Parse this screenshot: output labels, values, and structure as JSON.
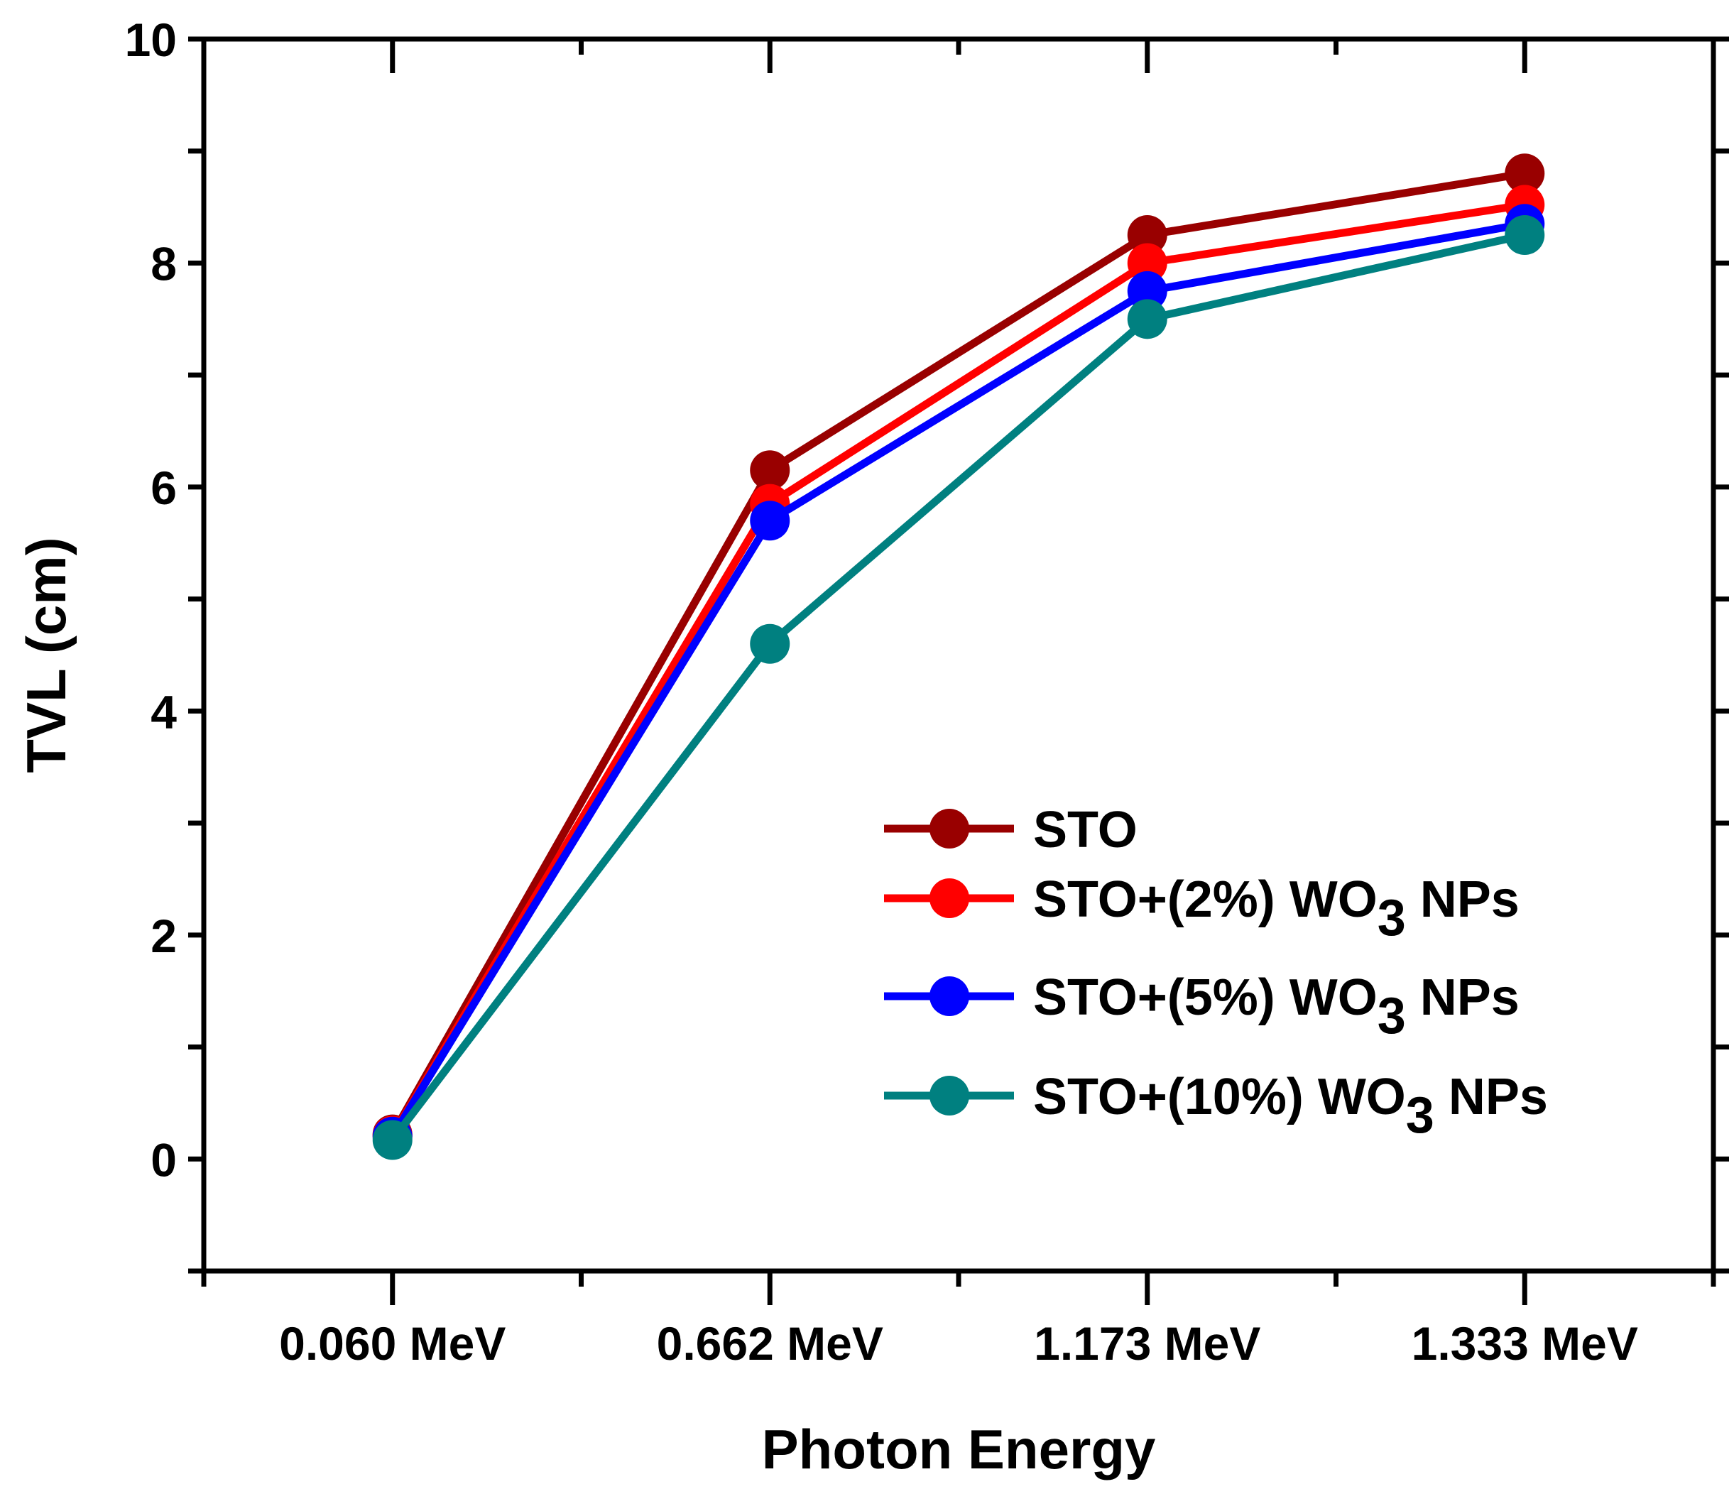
{
  "chart_data": {
    "type": "line",
    "title": "",
    "xlabel": "Photon Energy",
    "ylabel": "TVL (cm)",
    "categories": [
      "0.060 MeV",
      "0.662 MeV",
      "1.173 MeV",
      "1.333 MeV"
    ],
    "ylim": [
      -1,
      10
    ],
    "yticks": [
      0,
      2,
      4,
      6,
      8,
      10
    ],
    "grid": false,
    "legend_position": "lower-right",
    "series": [
      {
        "name": "STO",
        "label_main": "STO",
        "sub": "",
        "label_tail": "",
        "color": "#990000",
        "values": [
          0.22,
          6.15,
          8.25,
          8.8
        ]
      },
      {
        "name": "STO+(2%) WO3 NPs",
        "label_main": "STO+(2%) WO",
        "sub": "3",
        "label_tail": " NPs",
        "color": "#ff0000",
        "values": [
          0.21,
          5.85,
          8.0,
          8.52
        ]
      },
      {
        "name": "STO+(5%) WO3 NPs",
        "label_main": "STO+(5%) WO",
        "sub": "3",
        "label_tail": " NPs",
        "color": "#0000ff",
        "values": [
          0.2,
          5.7,
          7.75,
          8.35
        ]
      },
      {
        "name": "STO+(10%) WO3 NPs",
        "label_main": "STO+(10%) WO",
        "sub": "3",
        "label_tail": " NPs",
        "color": "#008080",
        "values": [
          0.17,
          4.6,
          7.5,
          8.25
        ]
      }
    ]
  }
}
